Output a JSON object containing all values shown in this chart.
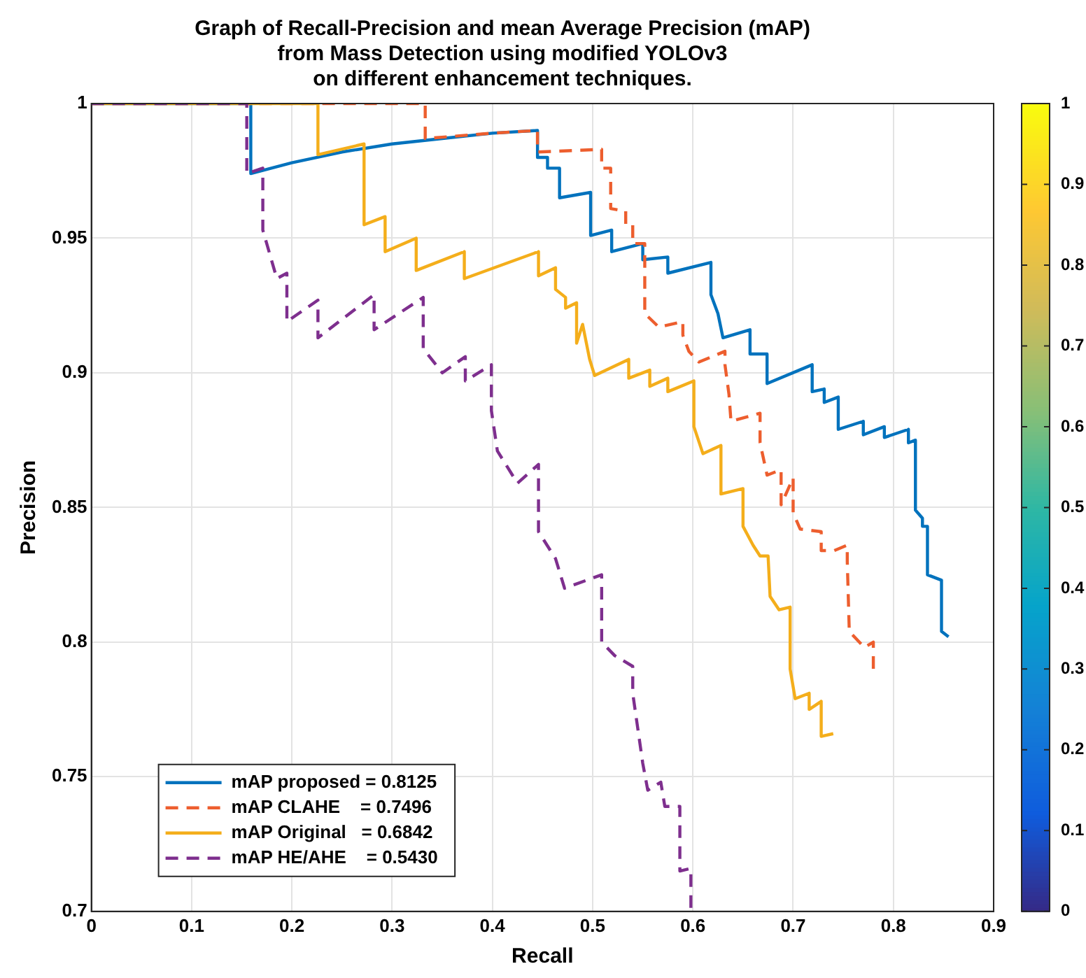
{
  "chart_data": {
    "type": "line",
    "title": "Graph of Recall-Precision and mean Average Precision (mAP)\nfrom Mass Detection using modified YOLOv3\non different enhancement techniques.",
    "xlabel": "Recall",
    "ylabel": "Precision",
    "xlim": [
      0,
      0.9
    ],
    "xticks": [
      0,
      0.1,
      0.2,
      0.3,
      0.4,
      0.5,
      0.6,
      0.7,
      0.8,
      0.9
    ],
    "ylim": [
      0.7,
      1
    ],
    "yticks": [
      0.7,
      0.75,
      0.8,
      0.85,
      0.9,
      0.95,
      1
    ],
    "grid": true,
    "legend": "bottom left",
    "marker": "none",
    "clim": [
      0,
      1
    ],
    "cticks": [
      0,
      0.1,
      0.2,
      0.3,
      0.4,
      0.5,
      0.6,
      0.7,
      0.8,
      0.9,
      1
    ],
    "series": [
      {
        "name": "mAP proposed = 0.8125",
        "color": "#0072bd",
        "line_style": "solid",
        "x": [
          0,
          0.159,
          0.159,
          0.2,
          0.25,
          0.3,
          0.35,
          0.4,
          0.445,
          0.445,
          0.455,
          0.455,
          0.467,
          0.467,
          0.498,
          0.498,
          0.519,
          0.519,
          0.55,
          0.55,
          0.575,
          0.575,
          0.618,
          0.618,
          0.625,
          0.63,
          0.657,
          0.657,
          0.674,
          0.674,
          0.719,
          0.719,
          0.731,
          0.731,
          0.745,
          0.745,
          0.77,
          0.77,
          0.791,
          0.791,
          0.815,
          0.815,
          0.822,
          0.822,
          0.829,
          0.829,
          0.834,
          0.834,
          0.848,
          0.848,
          0.855
        ],
        "values": [
          1,
          1,
          0.974,
          0.978,
          0.982,
          0.985,
          0.987,
          0.989,
          0.99,
          0.98,
          0.98,
          0.976,
          0.976,
          0.965,
          0.967,
          0.951,
          0.953,
          0.945,
          0.948,
          0.942,
          0.943,
          0.937,
          0.941,
          0.929,
          0.922,
          0.913,
          0.916,
          0.907,
          0.907,
          0.896,
          0.903,
          0.893,
          0.894,
          0.889,
          0.891,
          0.879,
          0.882,
          0.877,
          0.88,
          0.876,
          0.879,
          0.874,
          0.875,
          0.849,
          0.846,
          0.843,
          0.843,
          0.825,
          0.823,
          0.804,
          0.802
        ]
      },
      {
        "name": "mAP CLAHE    = 0.7496",
        "color": "#ed5e2e",
        "line_style": "dashed",
        "x": [
          0,
          0.333,
          0.333,
          0.4,
          0.445,
          0.445,
          0.509,
          0.509,
          0.518,
          0.518,
          0.533,
          0.533,
          0.54,
          0.54,
          0.552,
          0.552,
          0.566,
          0.59,
          0.59,
          0.596,
          0.606,
          0.632,
          0.632,
          0.636,
          0.638,
          0.667,
          0.667,
          0.674,
          0.688,
          0.688,
          0.7,
          0.7,
          0.707,
          0.728,
          0.728,
          0.741,
          0.754,
          0.754,
          0.756,
          0.771,
          0.78,
          0.78
        ],
        "values": [
          1,
          1,
          0.987,
          0.989,
          0.99,
          0.982,
          0.983,
          0.976,
          0.976,
          0.961,
          0.96,
          0.955,
          0.955,
          0.948,
          0.948,
          0.922,
          0.917,
          0.919,
          0.914,
          0.908,
          0.904,
          0.908,
          0.903,
          0.892,
          0.882,
          0.885,
          0.874,
          0.862,
          0.864,
          0.851,
          0.861,
          0.848,
          0.842,
          0.841,
          0.834,
          0.834,
          0.836,
          0.83,
          0.804,
          0.798,
          0.8,
          0.79
        ]
      },
      {
        "name": "mAP Original   = 0.6842",
        "color": "#f4ae1b",
        "line_style": "solid",
        "x": [
          0,
          0.226,
          0.226,
          0.272,
          0.272,
          0.293,
          0.293,
          0.324,
          0.324,
          0.372,
          0.372,
          0.446,
          0.446,
          0.463,
          0.463,
          0.473,
          0.473,
          0.484,
          0.484,
          0.49,
          0.497,
          0.502,
          0.536,
          0.536,
          0.557,
          0.557,
          0.575,
          0.575,
          0.601,
          0.601,
          0.61,
          0.628,
          0.628,
          0.65,
          0.65,
          0.66,
          0.667,
          0.675,
          0.677,
          0.686,
          0.697,
          0.697,
          0.702,
          0.716,
          0.716,
          0.728,
          0.728,
          0.74
        ],
        "values": [
          1,
          1,
          0.981,
          0.985,
          0.955,
          0.958,
          0.945,
          0.95,
          0.938,
          0.945,
          0.935,
          0.945,
          0.936,
          0.939,
          0.931,
          0.928,
          0.924,
          0.926,
          0.911,
          0.918,
          0.905,
          0.899,
          0.905,
          0.898,
          0.901,
          0.895,
          0.898,
          0.893,
          0.897,
          0.88,
          0.87,
          0.873,
          0.855,
          0.857,
          0.843,
          0.836,
          0.832,
          0.832,
          0.817,
          0.812,
          0.813,
          0.79,
          0.779,
          0.781,
          0.775,
          0.778,
          0.765,
          0.766
        ]
      },
      {
        "name": "mAP HE/AHE    = 0.5430",
        "color": "#7e2f8e",
        "line_style": "dashed",
        "x": [
          0,
          0.155,
          0.155,
          0.171,
          0.171,
          0.185,
          0.195,
          0.195,
          0.226,
          0.226,
          0.282,
          0.282,
          0.331,
          0.331,
          0.35,
          0.373,
          0.373,
          0.399,
          0.399,
          0.405,
          0.425,
          0.446,
          0.446,
          0.463,
          0.472,
          0.509,
          0.509,
          0.522,
          0.54,
          0.54,
          0.55,
          0.555,
          0.568,
          0.572,
          0.587,
          0.587,
          0.598,
          0.598
        ],
        "values": [
          1,
          1,
          0.974,
          0.976,
          0.953,
          0.935,
          0.937,
          0.919,
          0.927,
          0.913,
          0.929,
          0.916,
          0.928,
          0.909,
          0.9,
          0.906,
          0.897,
          0.903,
          0.886,
          0.871,
          0.859,
          0.866,
          0.841,
          0.831,
          0.82,
          0.825,
          0.8,
          0.795,
          0.791,
          0.781,
          0.755,
          0.745,
          0.748,
          0.739,
          0.739,
          0.715,
          0.716,
          0.7
        ]
      }
    ]
  }
}
